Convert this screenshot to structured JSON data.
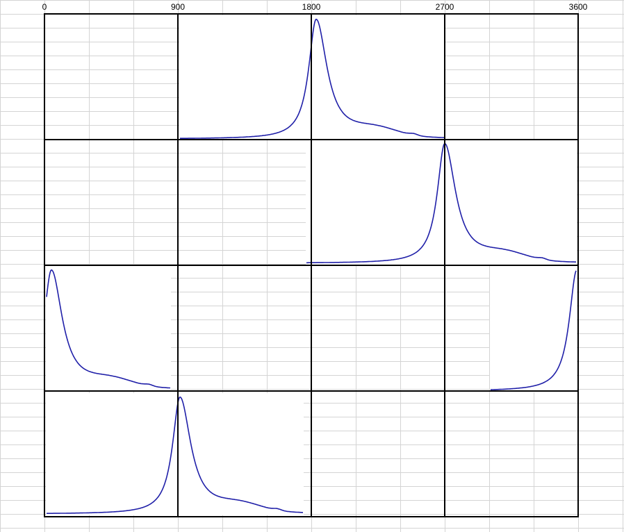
{
  "axis_labels": [
    "0",
    "900",
    "1800",
    "2700",
    "3600"
  ]
}
